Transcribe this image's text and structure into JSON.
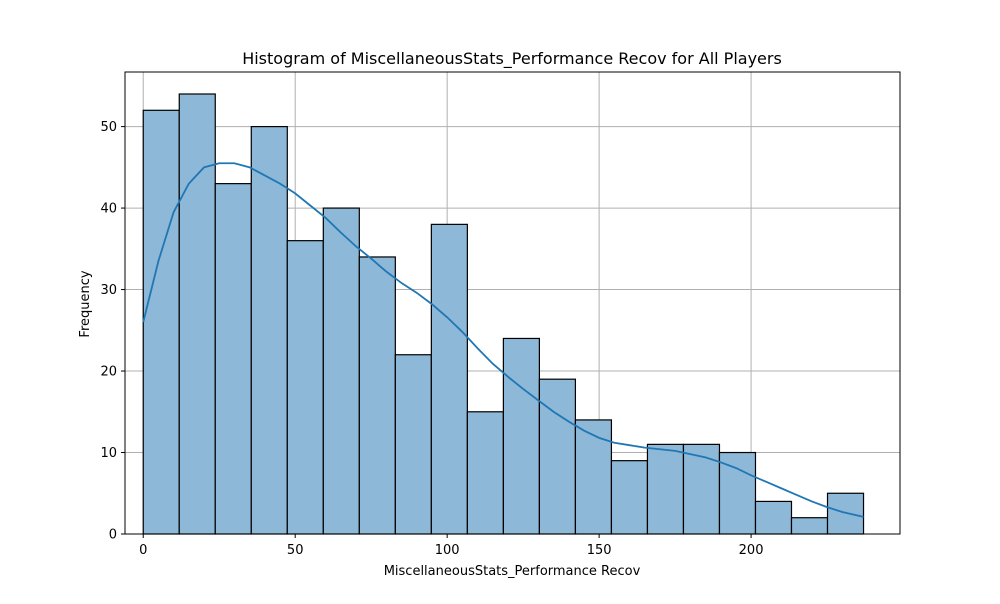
{
  "chart_data": {
    "type": "bar",
    "title": "Histogram of MiscellaneousStats_Performance Recov for All Players",
    "xlabel": "MiscellaneousStats_Performance Recov",
    "ylabel": "Frequency",
    "xlim": [
      -6,
      249
    ],
    "ylim": [
      0,
      56.7
    ],
    "x_ticks": [
      0,
      50,
      100,
      150,
      200
    ],
    "y_ticks": [
      0,
      10,
      20,
      30,
      40,
      50
    ],
    "grid": true,
    "bin_start": 0,
    "bin_width": 11.85,
    "bin_edges": [
      0,
      11.85,
      23.7,
      35.55,
      47.4,
      59.25,
      71.1,
      82.95,
      94.8,
      106.65,
      118.5,
      130.35,
      142.2,
      154.05,
      165.9,
      177.75,
      189.6,
      201.45,
      213.3,
      225.15,
      237
    ],
    "values": [
      52,
      54,
      43,
      50,
      36,
      40,
      34,
      22,
      38,
      15,
      24,
      19,
      14,
      9,
      11,
      11,
      10,
      4,
      2,
      5
    ],
    "kde": {
      "x": [
        0,
        5,
        10,
        15,
        20,
        25,
        30,
        35,
        40,
        45,
        50,
        55,
        60,
        65,
        70,
        75,
        80,
        85,
        90,
        95,
        100,
        105,
        110,
        115,
        120,
        125,
        130,
        135,
        140,
        145,
        150,
        155,
        160,
        165,
        170,
        175,
        180,
        185,
        190,
        195,
        200,
        205,
        210,
        215,
        220,
        225,
        230,
        237
      ],
      "y": [
        26,
        33.5,
        39.5,
        43,
        45,
        45.5,
        45.5,
        45,
        44,
        43,
        41.8,
        40.3,
        38.8,
        37,
        35.3,
        33.8,
        32.2,
        30.8,
        29.6,
        28.2,
        26.6,
        24.8,
        22.8,
        20.9,
        19.3,
        17.8,
        16.4,
        15,
        13.8,
        12.7,
        11.8,
        11.2,
        10.9,
        10.6,
        10.4,
        10.2,
        9.8,
        9.4,
        8.8,
        8.1,
        7.2,
        6.4,
        5.6,
        4.8,
        4,
        3.3,
        2.7,
        2.1
      ]
    },
    "colors": {
      "bar_fill": "#8db8d8",
      "bar_edge": "#000000",
      "kde_line": "#1f77b4",
      "grid": "#b0b0b0"
    }
  }
}
